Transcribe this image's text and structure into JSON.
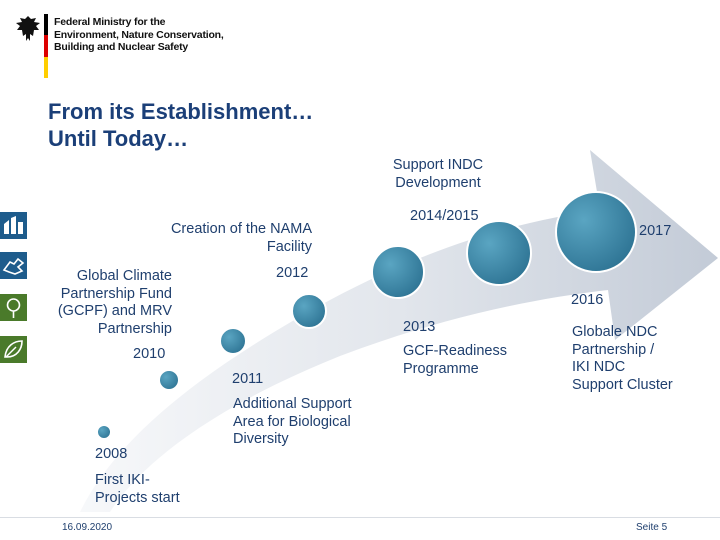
{
  "header": {
    "ministry_lines": [
      "Federal Ministry for the",
      "Environment, Nature Conservation,",
      "Building and Nuclear Safety"
    ]
  },
  "slide": {
    "title_lines": [
      "From its Establishment…",
      "Until Today…"
    ]
  },
  "timeline": {
    "milestones": [
      {
        "year": "2008",
        "description": "First IKI-Projects start"
      },
      {
        "year": "2010",
        "description": "Global Climate Partnership Fund (GCPF) and MRV Partnership"
      },
      {
        "year": "2011",
        "description": "Additional Support Area for Biological Diversity"
      },
      {
        "year": "2012",
        "description": "Creation of the NAMA Facility"
      },
      {
        "year": "2013",
        "description": "GCF-Readiness Programme"
      },
      {
        "year": "2014/2015",
        "description": "Support INDC Development"
      },
      {
        "year": "2016",
        "description": "Globale NDC Partnership / IKI NDC Support Cluster"
      },
      {
        "year": "2017",
        "description": ""
      }
    ],
    "label_lines": {
      "m2008": [
        "First IKI-",
        "Projects start"
      ],
      "m2010": [
        "Global Climate",
        "Partnership Fund",
        "(GCPF) and MRV",
        "Partnership"
      ],
      "m2011": [
        "Additional Support",
        "Area for Biological",
        "Diversity"
      ],
      "m2012": [
        "Creation of the NAMA",
        "Facility"
      ],
      "m2013": [
        "GCF-Readiness",
        "Programme"
      ],
      "m2014": [
        "Support INDC",
        "Development"
      ],
      "m2016": [
        "Globale NDC",
        "Partnership /",
        "IKI NDC",
        "Support Cluster"
      ]
    }
  },
  "side_icons": [
    "building-icon",
    "hands-icon",
    "tree-icon",
    "leaf-icon"
  ],
  "footer": {
    "date": "16.09.2020",
    "page": "Seite 5"
  },
  "colors": {
    "accent": "#1b3f78",
    "arrow_light": "#eef1f5",
    "arrow_dark": "#c3cbd7",
    "circle": "#3d8fb0",
    "icon_blue": "#1e5c8c",
    "icon_green": "#4a7a2a",
    "flag_black": "#000000",
    "flag_red": "#dd0000",
    "flag_gold": "#ffce00"
  }
}
